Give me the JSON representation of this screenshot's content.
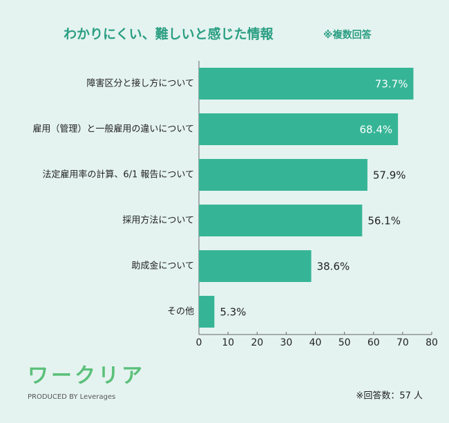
{
  "chart_data": {
    "type": "barh",
    "title": "わかりにくい、難しいと感じた情報",
    "subtitle": "※複数回答",
    "categories": [
      "障害区分と接し方について",
      "雇用（管理）と一般雇用の違いについて",
      "法定雇用率の計算、6/1 報告について",
      "採用方法について",
      "助成金について",
      "その他"
    ],
    "values": [
      73.7,
      68.4,
      57.9,
      56.1,
      38.6,
      5.3
    ],
    "value_labels": [
      "73.7%",
      "68.4%",
      "57.9%",
      "56.1%",
      "38.6%",
      "5.3%"
    ],
    "color": "#36b596",
    "xlim": [
      0,
      80
    ],
    "xticks": [
      0,
      10,
      20,
      30,
      40,
      50,
      60,
      70,
      80
    ],
    "note": "※回答数：57 人"
  },
  "branding": {
    "logo": "ワークリア",
    "tagline": "PRODUCED BY Leverages"
  }
}
